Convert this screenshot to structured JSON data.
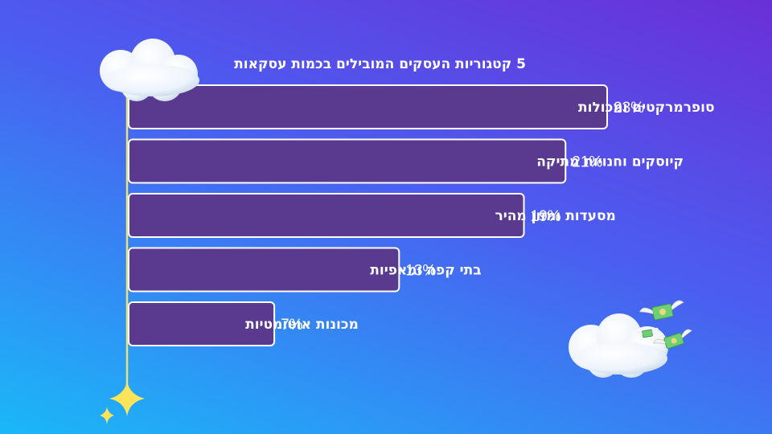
{
  "chart_data": {
    "type": "bar",
    "orientation": "horizontal",
    "title": "5 קטגוריות העסקים המובילים בכמות עסקאות",
    "categories": [
      "סופרמרקטים ומכולות",
      "קיוסקים וחנויות מתיקה",
      "מסעדות ומזון מהיר",
      "בתי קפה ומאפיות",
      "מכונות אוטומטיות"
    ],
    "values": [
      23,
      21,
      19,
      13,
      7
    ],
    "value_labels": [
      "23%",
      "21%",
      "19%",
      "13%",
      "7%"
    ],
    "unit": "%",
    "xlim": [
      0,
      23
    ],
    "grid": false,
    "legend": "none"
  },
  "colors": {
    "bar_fill": "#5a3a8e",
    "bar_stroke": "#ffffff",
    "axis_line": "#e6e27a",
    "text": "#ffffff",
    "star": "#ffe45a"
  },
  "decorations": {
    "clouds": [
      "cloud-icon",
      "cloud-icon"
    ],
    "money_wings": "money-with-wings-icon",
    "sparkle": "sparkle-icon"
  }
}
